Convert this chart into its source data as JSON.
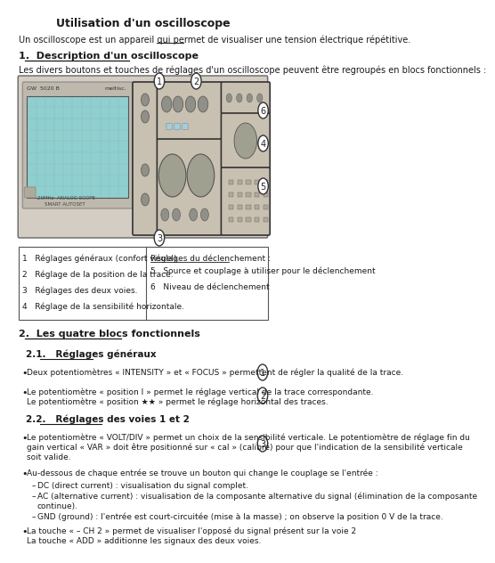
{
  "title": "Utilisation d'un oscilloscope",
  "bg_color": "#ffffff",
  "text_color": "#1a1a1a",
  "intro": "Un oscilloscope est un appareil qui permet de visualiser une tension électrique répétitive.",
  "section1_title": "1.  Description d'un oscilloscope",
  "section1_desc": "Les divers boutons et touches de réglages d'un oscilloscope peuvent être regroupés en blocs fonctionnels :",
  "table_left": [
    "1   Réglages généraux (confort visuel).",
    "2   Réglage de la position de la trace.",
    "3   Réglages des deux voies.",
    "4   Réglage de la sensibilité horizontale."
  ],
  "table_right_title": "Réglages du déclenchement :",
  "table_right": [
    "5   Source et couplage à utiliser pour le déclenchement",
    "6   Niveau de déclenchement"
  ],
  "section2_title": "2.  Les quatre blocs fonctionnels",
  "section21_title": "2.1.   Réglages généraux",
  "bullet1": "Deux potentiomètres « INTENSITY » et « FOCUS » permettent de régler la qualité de la trace.",
  "bullet2a": "Le potentiomètre « position I » permet le réglage vertical de la trace correspondante.",
  "bullet2b": "Le potentiomètre « position ★★ » permet le réglage horizontal des traces.",
  "section22_title": "2.2.   Réglages des voies 1 et 2",
  "bullet3a": "Le potentiomètre « VOLT/DIV » permet un choix de la sensibilité verticale. Le potentiomètre de réglage fin du",
  "bullet3b": "gain vertical « VAR » doit être positionné sur « cal » (calibré) pour que l'indication de la sensibilité verticale",
  "bullet3c": "soit valide.",
  "bullet4_intro": "Au-dessous de chaque entrée se trouve un bouton qui change le couplage se l'entrée :",
  "bullet4_dc": "DC (direct current) : visualisation du signal complet.",
  "bullet4_ac1": "AC (alternative current) : visualisation de la composante alternative du signal (élimination de la composante",
  "bullet4_ac2": "continue).",
  "bullet4_gnd": "GND (ground) : l'entrée est court-circuitée (mise à la masse) ; on observe la position 0 V de la trace.",
  "bullet5a": "La touche « – CH 2 » permet de visualiser l'opposé du signal présent sur la voie 2",
  "bullet5b": "La touche « ADD » additionne les signaux des deux voies.",
  "scope_text1": "GW  5020 B",
  "scope_text2": "meltisc.",
  "scope_text3": "20MHz  ANALOG SCOPE",
  "scope_text4": "SMART AUTOSET",
  "numbered_circles": [
    [
      265,
      82,
      "1"
    ],
    [
      330,
      82,
      "2"
    ],
    [
      448,
      115,
      "6"
    ],
    [
      448,
      152,
      "4"
    ],
    [
      448,
      200,
      "5"
    ],
    [
      265,
      258,
      "3"
    ]
  ]
}
